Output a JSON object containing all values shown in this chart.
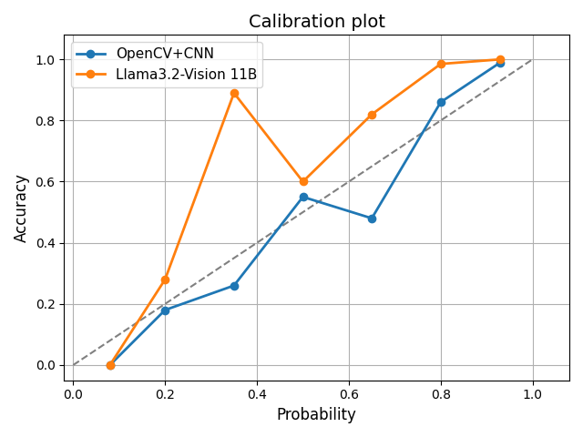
{
  "title": "Calibration plot",
  "xlabel": "Probability",
  "ylabel": "Accuracy",
  "opencv_cnn": {
    "x": [
      0.08,
      0.2,
      0.35,
      0.5,
      0.65,
      0.8,
      0.93
    ],
    "y": [
      0.0,
      0.18,
      0.26,
      0.55,
      0.48,
      0.86,
      0.99
    ],
    "color": "#1f77b4",
    "label": "OpenCV+CNN",
    "marker": "o",
    "linewidth": 2
  },
  "llama": {
    "x": [
      0.08,
      0.2,
      0.35,
      0.5,
      0.65,
      0.8,
      0.93
    ],
    "y": [
      0.0,
      0.28,
      0.89,
      0.6,
      0.82,
      0.985,
      1.0
    ],
    "color": "#ff7f0e",
    "label": "Llama3.2-Vision 11B",
    "marker": "o",
    "linewidth": 2
  },
  "diagonal": {
    "x": [
      0.0,
      1.0
    ],
    "y": [
      0.0,
      1.0
    ],
    "color": "gray",
    "linestyle": "--",
    "linewidth": 1.5
  },
  "xlim": [
    -0.02,
    1.08
  ],
  "ylim": [
    -0.05,
    1.08
  ],
  "xticks": [
    0.0,
    0.2,
    0.4,
    0.6,
    0.8,
    1.0
  ],
  "yticks": [
    0.0,
    0.2,
    0.4,
    0.6,
    0.8,
    1.0
  ],
  "title_fontsize": 14,
  "label_fontsize": 12,
  "tick_fontsize": 10,
  "figsize": [
    6.4,
    4.8
  ],
  "dpi": 100,
  "grid": true,
  "legend_loc": "upper left",
  "legend_fontsize": 11
}
